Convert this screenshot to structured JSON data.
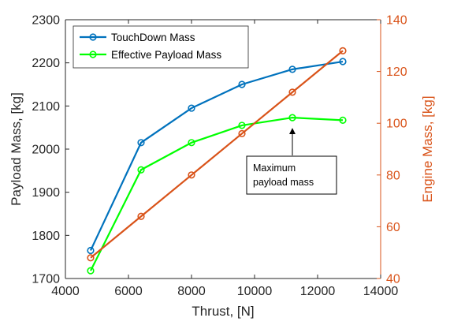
{
  "chart_data": {
    "type": "line",
    "xlabel": "Thrust, [N]",
    "ylabel_left": "Payload Mass, [kg]",
    "ylabel_right": "Engine Mass, [kg]",
    "xlim": [
      4000,
      14000
    ],
    "xticks": [
      4000,
      6000,
      8000,
      10000,
      12000,
      14000
    ],
    "ylim_left": [
      1700,
      2300
    ],
    "yticks_left": [
      1700,
      1800,
      1900,
      2000,
      2100,
      2200,
      2300
    ],
    "ylim_right": [
      40,
      140
    ],
    "yticks_right": [
      40,
      60,
      80,
      100,
      120,
      140
    ],
    "grid": false,
    "legend_position": "top-left",
    "series": [
      {
        "name": "TouchDown Mass",
        "axis": "left",
        "color": "#0072BD",
        "x": [
          4800,
          6400,
          8000,
          9600,
          11200,
          12800
        ],
        "y": [
          1765,
          2015,
          2095,
          2150,
          2185,
          2203
        ]
      },
      {
        "name": "Effective Payload Mass",
        "axis": "left",
        "color": "#00FF00",
        "x": [
          4800,
          6400,
          8000,
          9600,
          11200,
          12800
        ],
        "y": [
          1718,
          1952,
          2015,
          2055,
          2073,
          2067
        ]
      },
      {
        "axis": "right",
        "color": "#D95319",
        "x": [
          4800,
          6400,
          8000,
          9600,
          11200,
          12800
        ],
        "y": [
          48,
          64,
          80,
          96,
          112,
          128
        ]
      }
    ],
    "annotation": {
      "lines": [
        "Maximum",
        "payload mass"
      ],
      "arrow_target": {
        "x": 11200,
        "y": 2073
      }
    },
    "colors": {
      "left_axis": "#262626",
      "right_axis": "#D95319"
    }
  }
}
